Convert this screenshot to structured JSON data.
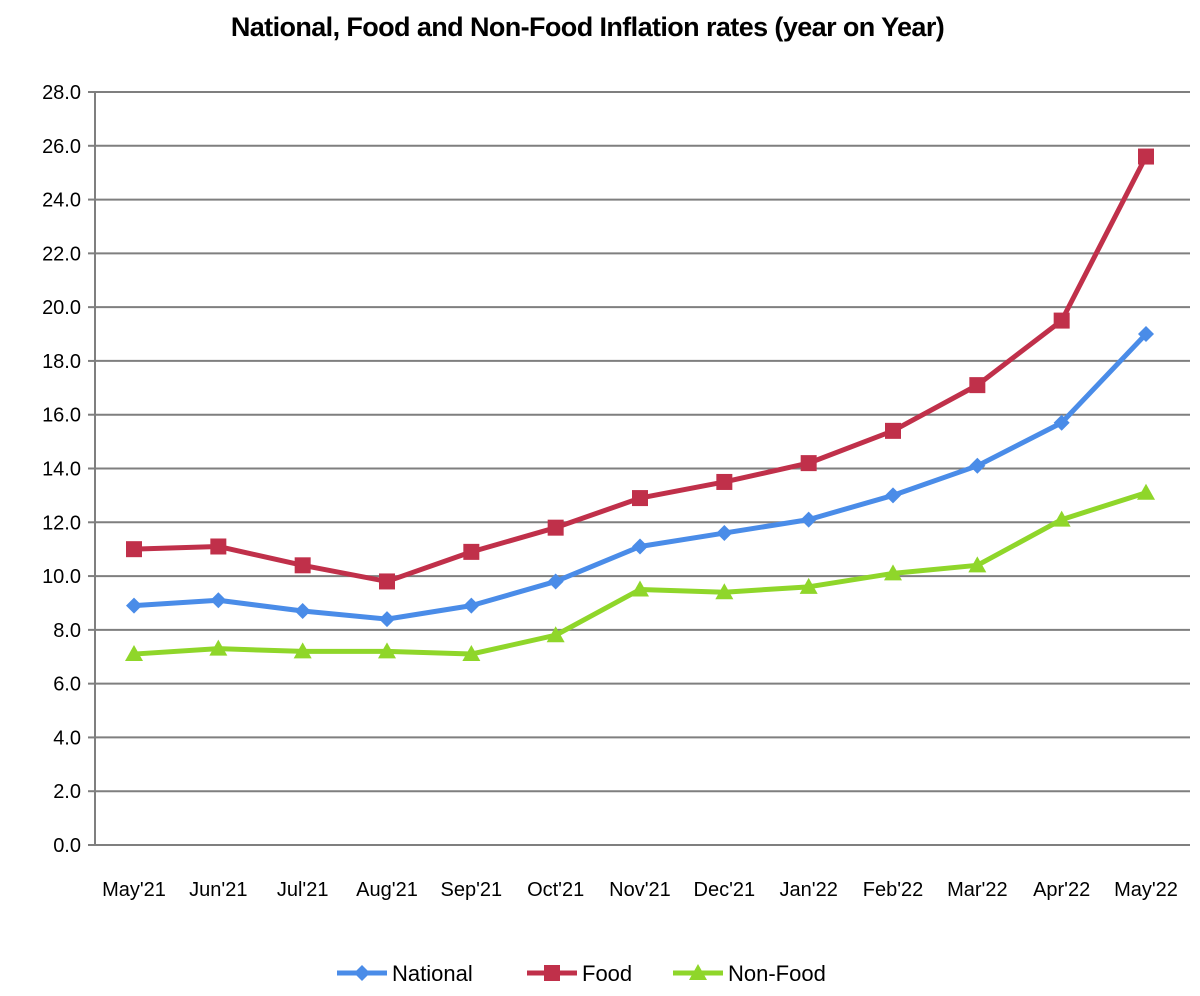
{
  "chart_data": {
    "type": "line",
    "title": "National, Food and Non-Food Inflation rates (year on Year)",
    "xlabel": "",
    "ylabel": "",
    "categories": [
      "May'21",
      "Jun'21",
      "Jul'21",
      "Aug'21",
      "Sep'21",
      "Oct'21",
      "Nov'21",
      "Dec'21",
      "Jan'22",
      "Feb'22",
      "Mar'22",
      "Apr'22",
      "May'22"
    ],
    "ylim": [
      0,
      28
    ],
    "ytick_step": 2,
    "ytick_labels": [
      "0.0",
      "2.0",
      "4.0",
      "6.0",
      "8.0",
      "10.0",
      "12.0",
      "14.0",
      "16.0",
      "18.0",
      "20.0",
      "22.0",
      "24.0",
      "26.0",
      "28.0"
    ],
    "grid": true,
    "legend_position": "bottom",
    "series": [
      {
        "name": "National",
        "color": "#4A8CE8",
        "marker": "diamond",
        "values": [
          8.9,
          9.1,
          8.7,
          8.4,
          8.9,
          9.8,
          11.1,
          11.6,
          12.1,
          13.0,
          14.1,
          15.7,
          19.0
        ]
      },
      {
        "name": "Food",
        "color": "#C0304A",
        "marker": "square",
        "values": [
          11.0,
          11.1,
          10.4,
          9.8,
          10.9,
          11.8,
          12.9,
          13.5,
          14.2,
          15.4,
          17.1,
          19.5,
          25.6
        ]
      },
      {
        "name": "Non-Food",
        "color": "#8FD62A",
        "marker": "triangle",
        "values": [
          7.1,
          7.3,
          7.2,
          7.2,
          7.1,
          7.8,
          9.5,
          9.4,
          9.6,
          10.1,
          10.4,
          12.1,
          13.1
        ]
      }
    ]
  }
}
